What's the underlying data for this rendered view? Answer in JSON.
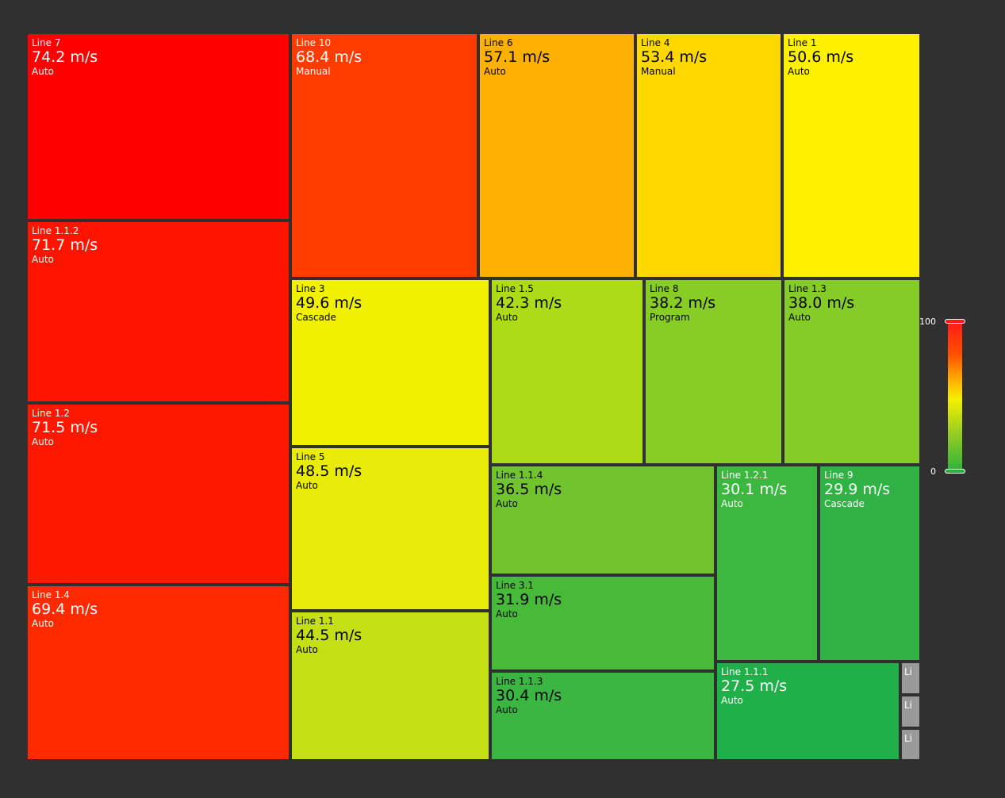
{
  "chart_data": {
    "type": "treemap",
    "unit": "m/s",
    "legend": {
      "max": 100,
      "min": 0,
      "max_label": "100",
      "min_label": "0",
      "placement": "right"
    },
    "tiles": [
      {
        "name": "Line 7",
        "value": "74.2 m/s",
        "mode": "Auto"
      },
      {
        "name": "Line 1.1.2",
        "value": "71.7 m/s",
        "mode": "Auto"
      },
      {
        "name": "Line 1.2",
        "value": "71.5 m/s",
        "mode": "Auto"
      },
      {
        "name": "Line 1.4",
        "value": "69.4 m/s",
        "mode": "Auto"
      },
      {
        "name": "Line 10",
        "value": "68.4 m/s",
        "mode": "Manual"
      },
      {
        "name": "Line 6",
        "value": "57.1 m/s",
        "mode": "Auto"
      },
      {
        "name": "Line 4",
        "value": "53.4 m/s",
        "mode": "Manual"
      },
      {
        "name": "Line 1",
        "value": "50.6 m/s",
        "mode": "Auto"
      },
      {
        "name": "Line 3",
        "value": "49.6 m/s",
        "mode": "Cascade"
      },
      {
        "name": "Line 5",
        "value": "48.5 m/s",
        "mode": "Auto"
      },
      {
        "name": "Line 1.1",
        "value": "44.5 m/s",
        "mode": "Auto"
      },
      {
        "name": "Line 1.5",
        "value": "42.3 m/s",
        "mode": "Auto"
      },
      {
        "name": "Line 8",
        "value": "38.2 m/s",
        "mode": "Program"
      },
      {
        "name": "Line 1.3",
        "value": "38.0 m/s",
        "mode": "Auto"
      },
      {
        "name": "Line 1.1.4",
        "value": "36.5 m/s",
        "mode": "Auto"
      },
      {
        "name": "Line 3.1",
        "value": "31.9 m/s",
        "mode": "Auto"
      },
      {
        "name": "Line 1.1.3",
        "value": "30.4 m/s",
        "mode": "Auto"
      },
      {
        "name": "Line 1.2.1",
        "value": "30.1 m/s",
        "mode": "Auto"
      },
      {
        "name": "Line 9",
        "value": "29.9 m/s",
        "mode": "Cascade"
      },
      {
        "name": "Line 1.1.1",
        "value": "27.5 m/s",
        "mode": "Auto"
      },
      {
        "name": "Li",
        "value": "",
        "mode": ""
      },
      {
        "name": "Li",
        "value": "",
        "mode": ""
      },
      {
        "name": "Li",
        "value": "",
        "mode": ""
      }
    ],
    "colors": {
      "Line 7": "#ff0000",
      "Line 1.1.2": "#ff1400",
      "Line 1.2": "#ff1800",
      "Line 1.4": "#ff2a00",
      "Line 10": "#ff3c00",
      "Line 6": "#ffb000",
      "Line 4": "#ffd800",
      "Line 1": "#fff000",
      "Line 3": "#f0f000",
      "Line 5": "#e8ec08",
      "Line 1.1": "#c4e014",
      "Line 1.5": "#aedb18",
      "Line 8": "#88cc26",
      "Line 1.3": "#86cc28",
      "Line 1.1.4": "#72c42e",
      "Line 3.1": "#48ba3a",
      "Line 1.1.3": "#3cb642",
      "Line 1.2.1": "#3cb840",
      "Line 9": "#30b244",
      "Line 1.1.1": "#20b04a",
      "Li": "#999999"
    }
  }
}
